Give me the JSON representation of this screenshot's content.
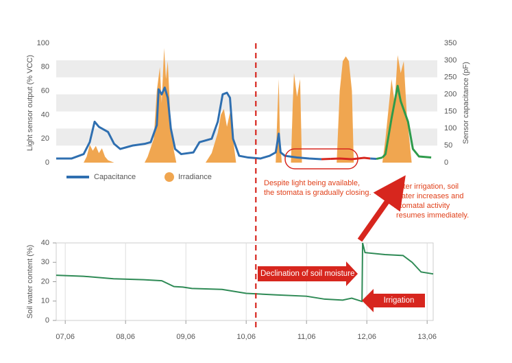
{
  "chart_data": [
    {
      "type": "line",
      "y_label": "Light sensor output (% VCC)",
      "y2_label": "Sensor capacitance (pF)",
      "xlim": [
        -0.15,
        6.1
      ],
      "ylim": [
        0,
        100
      ],
      "yticks": [
        0,
        20,
        40,
        60,
        80,
        100
      ],
      "y2lim": [
        0,
        350
      ],
      "y2ticks": [
        0,
        50,
        100,
        150,
        200,
        250,
        300,
        350
      ],
      "grid_bands": true,
      "series": [
        {
          "name": "Capacitance",
          "color": "#2f6fb0",
          "axis": "y2",
          "kind": "line",
          "color_segments": [
            {
              "from": 4.3,
              "to": 5.05,
              "color": "#d7261e"
            },
            {
              "from": 5.15,
              "to": 6.1,
              "color": "#2e9b4b"
            }
          ],
          "x": [
            -0.15,
            0.1,
            0.3,
            0.4,
            0.48,
            0.55,
            0.7,
            0.8,
            0.9,
            1.0,
            1.1,
            1.3,
            1.4,
            1.5,
            1.53,
            1.58,
            1.63,
            1.68,
            1.73,
            1.8,
            1.9,
            2.1,
            2.2,
            2.4,
            2.5,
            2.58,
            2.65,
            2.7,
            2.75,
            2.85,
            3.0,
            3.2,
            3.35,
            3.45,
            3.5,
            3.53,
            3.6,
            3.8,
            4.0,
            4.2,
            4.35,
            4.5,
            4.7,
            4.9,
            5.0,
            5.1,
            5.2,
            5.25,
            5.35,
            5.45,
            5.5,
            5.55,
            5.62,
            5.7,
            5.8,
            6.0
          ],
          "values": [
            12,
            12,
            25,
            60,
            120,
            105,
            90,
            55,
            40,
            45,
            50,
            55,
            60,
            110,
            215,
            200,
            220,
            190,
            100,
            40,
            25,
            30,
            60,
            70,
            120,
            200,
            205,
            190,
            70,
            20,
            15,
            12,
            20,
            30,
            85,
            30,
            20,
            15,
            12,
            10,
            11,
            12,
            10,
            14,
            12,
            11,
            15,
            25,
            130,
            225,
            180,
            155,
            120,
            40,
            18,
            15
          ]
        },
        {
          "name": "Irradiance",
          "color": "#f0a650",
          "axis": "y",
          "kind": "area",
          "x": [
            -0.15,
            0.3,
            0.35,
            0.4,
            0.45,
            0.5,
            0.55,
            0.6,
            0.65,
            0.7,
            0.8,
            1.3,
            1.35,
            1.45,
            1.5,
            1.55,
            1.58,
            1.62,
            1.65,
            1.68,
            1.72,
            1.78,
            1.82,
            2.3,
            2.4,
            2.5,
            2.55,
            2.6,
            2.65,
            2.7,
            2.75,
            2.8,
            3.45,
            3.48,
            3.5,
            3.52,
            3.55,
            3.7,
            3.73,
            3.75,
            3.8,
            3.85,
            3.88,
            4.45,
            4.5,
            4.55,
            4.6,
            4.65,
            4.7,
            4.73,
            5.2,
            5.25,
            5.35,
            5.4,
            5.45,
            5.5,
            5.55,
            5.6,
            5.68,
            6.05
          ],
          "values": [
            0,
            0,
            5,
            15,
            10,
            14,
            8,
            12,
            5,
            2,
            0,
            0,
            5,
            20,
            60,
            80,
            50,
            96,
            70,
            85,
            40,
            10,
            0,
            0,
            8,
            25,
            40,
            45,
            30,
            42,
            20,
            0,
            0,
            45,
            70,
            20,
            0,
            0,
            50,
            75,
            55,
            70,
            0,
            0,
            60,
            85,
            89,
            85,
            60,
            0,
            0,
            20,
            70,
            50,
            90,
            75,
            85,
            40,
            0,
            0
          ]
        }
      ],
      "legend": "bottom-left",
      "annotations": [
        [
          "Despite light being available,",
          "the stomata is gradually closing."
        ],
        [
          "After irrigation, soil",
          "water increases and",
          "stomatal activity",
          "resumes immediately."
        ]
      ]
    },
    {
      "type": "line",
      "y_label": "Soil water content (%)",
      "xlim": [
        -0.15,
        6.1
      ],
      "xticks": [
        {
          "value": 0,
          "label": "07,06"
        },
        {
          "value": 1,
          "label": "08,06"
        },
        {
          "value": 2,
          "label": "09,06"
        },
        {
          "value": 3,
          "label": "10,06"
        },
        {
          "value": 4,
          "label": "11,06"
        },
        {
          "value": 5,
          "label": "12,06"
        },
        {
          "value": 6,
          "label": "13,06"
        }
      ],
      "ylim": [
        0,
        40
      ],
      "yticks": [
        0,
        10,
        20,
        30,
        40
      ],
      "grid": true,
      "vline": 3.16,
      "series": [
        {
          "name": "Soil water content",
          "color": "#2e8a55",
          "x": [
            -0.15,
            0.3,
            0.8,
            1.3,
            1.6,
            1.8,
            1.95,
            2.1,
            2.6,
            3.0,
            3.5,
            4.0,
            4.3,
            4.6,
            4.75,
            4.85,
            4.92,
            4.93,
            4.97,
            5.3,
            5.6,
            5.75,
            5.9,
            6.1
          ],
          "values": [
            23.3,
            22.8,
            21.5,
            21,
            20.5,
            17.5,
            17.2,
            16.5,
            16,
            14,
            13.2,
            12.5,
            11,
            10.5,
            11.5,
            10.5,
            9.8,
            40,
            35,
            34,
            33.5,
            30,
            25,
            24
          ]
        }
      ],
      "annotations": [
        "Declination of soil moisture",
        "Irrigation"
      ]
    }
  ]
}
